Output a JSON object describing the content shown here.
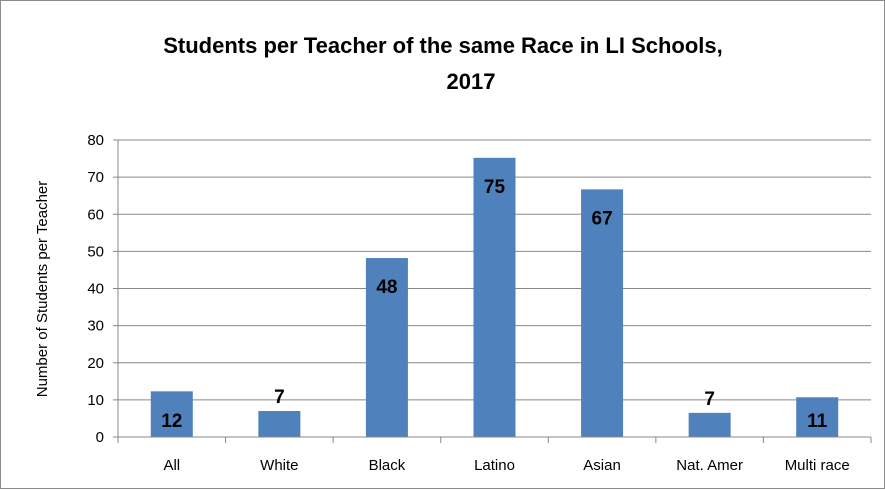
{
  "chart_data": {
    "type": "bar",
    "title_lines": [
      "Students per Teacher of the same Race in LI Schools,",
      "2017"
    ],
    "xlabel": "",
    "ylabel": "Number of Students per Teacher",
    "categories": [
      "All",
      "White",
      "Black",
      "Latino",
      "Asian",
      "Nat. Amer",
      "Multi race"
    ],
    "values": [
      12.3,
      7,
      48.2,
      75.2,
      66.7,
      6.5,
      10.7
    ],
    "data_labels": [
      "12",
      "7",
      "48",
      "75",
      "67",
      "7",
      "11"
    ],
    "ylim": [
      0,
      80
    ],
    "yticks": [
      "0",
      "10",
      "20",
      "30",
      "40",
      "50",
      "60",
      "70",
      "80"
    ],
    "grid": true,
    "legend": "none",
    "colors": {
      "bar": "#4f81bd",
      "grid": "#888888",
      "axis": "#888888"
    }
  }
}
